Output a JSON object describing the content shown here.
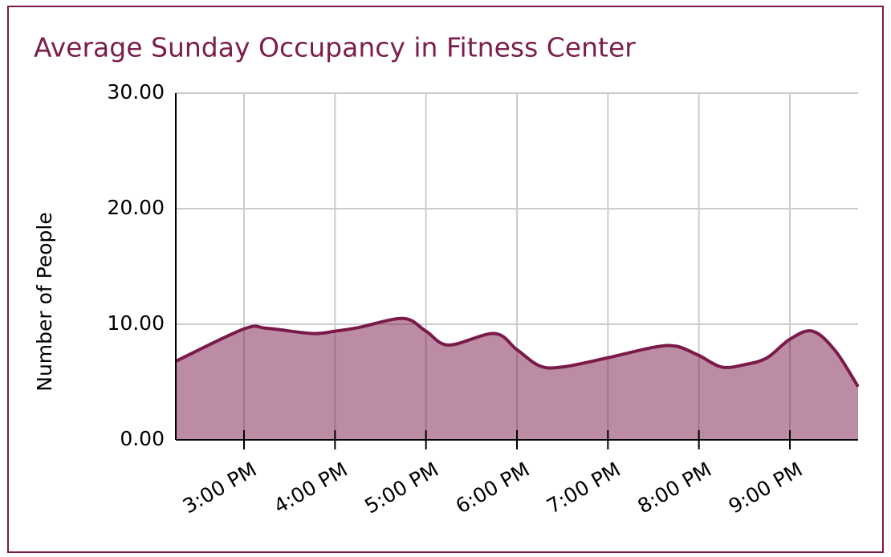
{
  "chart_data": {
    "type": "area",
    "title": "Average Sunday Occupancy in Fitness Center",
    "y_label": "Number of People",
    "x": [
      14.25,
      15.0,
      15.25,
      15.75,
      16.0,
      16.25,
      16.75,
      17.0,
      17.25,
      17.75,
      18.0,
      18.25,
      18.5,
      19.0,
      19.5,
      19.75,
      20.0,
      20.25,
      20.5,
      20.75,
      21.0,
      21.25,
      21.5,
      21.75
    ],
    "values": [
      6.8,
      9.6,
      9.65,
      9.2,
      9.4,
      9.7,
      10.5,
      9.4,
      8.2,
      9.2,
      7.8,
      6.4,
      6.3,
      7.1,
      8.0,
      8.1,
      7.3,
      6.3,
      6.5,
      7.1,
      8.7,
      9.4,
      7.7,
      4.6
    ],
    "color": "#7a1a4a",
    "xlim": [
      14.25,
      21.75
    ],
    "xticks": [
      {
        "value": 15,
        "label": "3:00 PM"
      },
      {
        "value": 16,
        "label": "4:00 PM"
      },
      {
        "value": 17,
        "label": "5:00 PM"
      },
      {
        "value": 18,
        "label": "6:00 PM"
      },
      {
        "value": 19,
        "label": "7:00 PM"
      },
      {
        "value": 20,
        "label": "8:00 PM"
      },
      {
        "value": 21,
        "label": "9:00 PM"
      }
    ],
    "ylim": [
      0,
      30
    ],
    "yticks": [
      {
        "value": 0,
        "label": "0.00"
      },
      {
        "value": 10,
        "label": "10.00"
      },
      {
        "value": 20,
        "label": "20.00"
      },
      {
        "value": 30,
        "label": "30.00"
      }
    ],
    "grid": true
  }
}
